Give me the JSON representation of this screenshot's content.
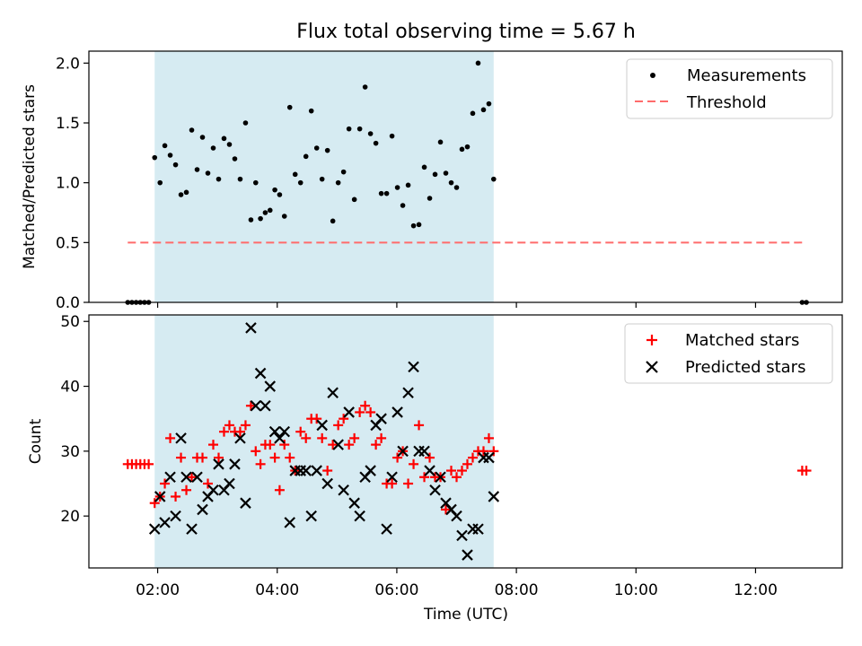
{
  "chart_data": [
    {
      "type": "scatter",
      "title": "Flux total observing time = 5.67 h",
      "xlabel": "",
      "ylabel": "Matched/Predicted stars",
      "xlim_hours": [
        0.85,
        13.45
      ],
      "ylim": [
        0,
        2.1
      ],
      "yticks": [
        0.0,
        0.5,
        1.0,
        1.5,
        2.0
      ],
      "ytick_labels": [
        "0.0",
        "0.5",
        "1.0",
        "1.5",
        "2.0"
      ],
      "shaded_span_hours": [
        1.95,
        7.62
      ],
      "shaded_color": "#add8e6",
      "legend": {
        "placement": "top-right",
        "entries": [
          {
            "label": "Measurements",
            "marker": "dot",
            "color": "#000000"
          },
          {
            "label": "Threshold",
            "marker": "dashed-line",
            "color": "#ff6b6b"
          }
        ]
      },
      "threshold": {
        "value": 0.5,
        "x_from": 1.5,
        "x_to": 12.85
      },
      "series": [
        {
          "name": "Measurements",
          "x": [
            1.5,
            1.57,
            1.64,
            1.71,
            1.78,
            1.85,
            1.95,
            2.04,
            2.12,
            2.21,
            2.3,
            2.39,
            2.48,
            2.57,
            2.66,
            2.75,
            2.84,
            2.93,
            3.02,
            3.11,
            3.2,
            3.29,
            3.38,
            3.47,
            3.56,
            3.64,
            3.72,
            3.8,
            3.88,
            3.96,
            4.04,
            4.12,
            4.21,
            4.3,
            4.39,
            4.48,
            4.57,
            4.66,
            4.75,
            4.84,
            4.93,
            5.02,
            5.11,
            5.2,
            5.29,
            5.38,
            5.47,
            5.56,
            5.65,
            5.74,
            5.83,
            5.92,
            6.01,
            6.1,
            6.19,
            6.28,
            6.37,
            6.46,
            6.55,
            6.64,
            6.73,
            6.82,
            6.91,
            7.0,
            7.09,
            7.18,
            7.27,
            7.36,
            7.45,
            7.54,
            7.62,
            12.78,
            12.85
          ],
          "y": [
            0,
            0,
            0,
            0,
            0,
            0,
            1.21,
            1.0,
            1.31,
            1.23,
            1.15,
            0.9,
            0.92,
            1.44,
            1.11,
            1.38,
            1.08,
            1.29,
            1.03,
            1.37,
            1.32,
            1.2,
            1.03,
            1.5,
            0.69,
            1.0,
            0.7,
            0.75,
            0.77,
            0.94,
            0.9,
            0.72,
            1.63,
            1.07,
            1.0,
            1.22,
            1.6,
            1.29,
            1.03,
            1.27,
            0.68,
            1.0,
            1.09,
            1.45,
            0.86,
            1.45,
            1.8,
            1.41,
            1.33,
            0.91,
            0.91,
            1.39,
            0.96,
            0.81,
            0.98,
            0.64,
            0.65,
            1.13,
            0.87,
            1.07,
            1.34,
            1.08,
            1.0,
            0.96,
            1.28,
            1.3,
            1.58,
            2.0,
            1.61,
            1.66,
            1.03,
            0,
            0
          ],
          "color": "#000000"
        }
      ]
    },
    {
      "type": "scatter",
      "title": "",
      "xlabel": "Time (UTC)",
      "ylabel": "Count",
      "xlim_hours": [
        0.85,
        13.45
      ],
      "ylim": [
        12,
        51
      ],
      "yticks": [
        20,
        30,
        40,
        50
      ],
      "ytick_labels": [
        "20",
        "30",
        "40",
        "50"
      ],
      "xticks_hours": [
        2,
        4,
        6,
        8,
        10,
        12
      ],
      "xtick_labels": [
        "02:00",
        "04:00",
        "06:00",
        "08:00",
        "10:00",
        "12:00"
      ],
      "shaded_span_hours": [
        1.95,
        7.62
      ],
      "shaded_color": "#add8e6",
      "legend": {
        "placement": "top-right",
        "entries": [
          {
            "label": "Matched stars",
            "marker": "plus",
            "color": "#ff0000"
          },
          {
            "label": "Predicted stars",
            "marker": "cross",
            "color": "#000000"
          }
        ]
      },
      "series": [
        {
          "name": "Matched stars",
          "marker": "plus",
          "color": "#ff0000",
          "x": [
            1.5,
            1.57,
            1.64,
            1.71,
            1.78,
            1.85,
            1.95,
            2.04,
            2.12,
            2.21,
            2.3,
            2.39,
            2.48,
            2.57,
            2.66,
            2.75,
            2.84,
            2.93,
            3.02,
            3.11,
            3.2,
            3.29,
            3.38,
            3.47,
            3.56,
            3.64,
            3.72,
            3.8,
            3.88,
            3.96,
            4.04,
            4.12,
            4.21,
            4.3,
            4.39,
            4.48,
            4.57,
            4.66,
            4.75,
            4.84,
            4.93,
            5.02,
            5.11,
            5.2,
            5.29,
            5.38,
            5.47,
            5.56,
            5.65,
            5.74,
            5.83,
            5.92,
            6.01,
            6.1,
            6.19,
            6.28,
            6.37,
            6.46,
            6.55,
            6.64,
            6.73,
            6.82,
            6.91,
            7.0,
            7.09,
            7.18,
            7.27,
            7.36,
            7.45,
            7.54,
            7.62,
            12.78,
            12.85
          ],
          "y": [
            28,
            28,
            28,
            28,
            28,
            28,
            22,
            23,
            25,
            32,
            23,
            29,
            24,
            26,
            29,
            29,
            25,
            31,
            29,
            33,
            34,
            33,
            33,
            34,
            37,
            30,
            28,
            31,
            31,
            29,
            24,
            31,
            29,
            27,
            33,
            32,
            35,
            35,
            32,
            27,
            31,
            34,
            35,
            31,
            32,
            36,
            37,
            36,
            31,
            32,
            25,
            25,
            29,
            30,
            25,
            28,
            34,
            26,
            29,
            26,
            26,
            21,
            27,
            26,
            27,
            28,
            29,
            30,
            30,
            32,
            30,
            27,
            27
          ]
        },
        {
          "name": "Predicted stars",
          "marker": "cross",
          "color": "#000000",
          "x": [
            1.95,
            2.04,
            2.12,
            2.21,
            2.3,
            2.39,
            2.48,
            2.57,
            2.66,
            2.75,
            2.84,
            2.93,
            3.02,
            3.11,
            3.2,
            3.29,
            3.38,
            3.47,
            3.56,
            3.64,
            3.72,
            3.8,
            3.88,
            3.96,
            4.04,
            4.12,
            4.21,
            4.3,
            4.39,
            4.48,
            4.57,
            4.66,
            4.75,
            4.84,
            4.93,
            5.02,
            5.11,
            5.2,
            5.29,
            5.38,
            5.47,
            5.56,
            5.65,
            5.74,
            5.83,
            5.92,
            6.01,
            6.1,
            6.19,
            6.28,
            6.37,
            6.46,
            6.55,
            6.64,
            6.73,
            6.82,
            6.91,
            7.0,
            7.09,
            7.18,
            7.27,
            7.36,
            7.45,
            7.54,
            7.62
          ],
          "y": [
            18,
            23,
            19,
            26,
            20,
            32,
            26,
            18,
            26,
            21,
            23,
            24,
            28,
            24,
            25,
            28,
            32,
            22,
            49,
            37,
            42,
            37,
            40,
            33,
            32,
            33,
            19,
            27,
            27,
            27,
            20,
            27,
            34,
            25,
            39,
            31,
            24,
            36,
            22,
            20,
            26,
            27,
            34,
            35,
            18,
            26,
            36,
            30,
            39,
            43,
            30,
            30,
            27,
            24,
            26,
            22,
            21,
            20,
            17,
            14,
            18,
            18,
            29,
            29,
            23
          ]
        }
      ]
    }
  ]
}
